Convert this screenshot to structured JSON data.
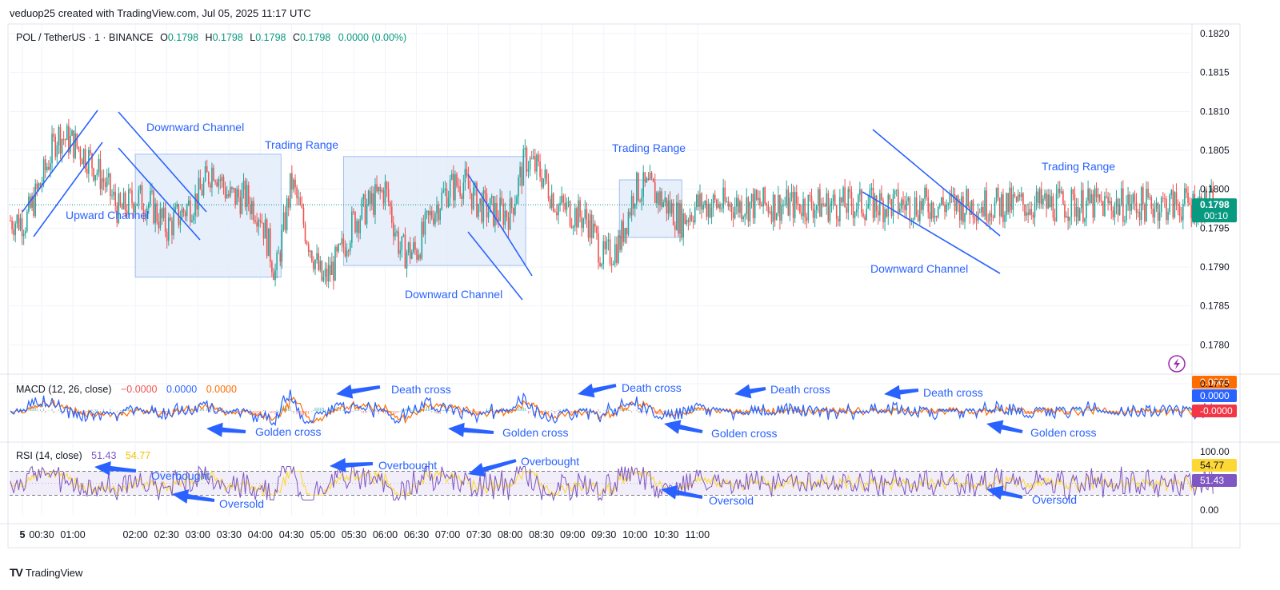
{
  "header": {
    "attribution": "veduop25 created with TradingView.com, Jul 05, 2025 11:17 UTC"
  },
  "footer": {
    "brand": "TradingView",
    "logo": "TV"
  },
  "colors": {
    "up": "#26a69a",
    "down": "#ef5350",
    "annotation": "#2962ff",
    "box_fill": "#e3edfb",
    "box_stroke": "#90b4f0",
    "macd": "#2962ff",
    "signal": "#ff6d00",
    "rsi": "#7e57c2",
    "rsi_ma": "#fdd835",
    "last_price": "#089981"
  },
  "legend": {
    "price": {
      "symbol": "POL / TetherUS · 1 · BINANCE",
      "o_label": "O",
      "o": "0.1798",
      "h_label": "H",
      "h": "0.1798",
      "l_label": "L",
      "l": "0.1798",
      "c_label": "C",
      "c": "0.1798",
      "change": "0.0000 (0.00%)"
    },
    "macd": {
      "label": "MACD (12, 26, close)",
      "hist": "−0.0000",
      "macd": "0.0000",
      "signal": "0.0000"
    },
    "rsi": {
      "label": "RSI (14, close)",
      "rsi": "51.43",
      "ma": "54.77"
    }
  },
  "price_axis": {
    "ticks": [
      "0.1820",
      "0.1815",
      "0.1810",
      "0.1805",
      "0.1800",
      "0.1795",
      "0.1790",
      "0.1785",
      "0.1780",
      "0.1775"
    ],
    "last_price": "0.1798",
    "countdown": "00:10"
  },
  "macd_axis": {
    "tags": [
      "0.0000",
      "0.0000",
      "-0.0000"
    ]
  },
  "rsi_axis": {
    "ticks": [
      "100.00",
      "0.00"
    ],
    "tags": [
      "54.77",
      "51.43"
    ]
  },
  "time_axis": {
    "labels": [
      "5",
      "00:30",
      "01:00",
      "02:00",
      "02:30",
      "03:00",
      "03:30",
      "04:00",
      "04:30",
      "05:00",
      "05:30",
      "06:00",
      "06:30",
      "07:00",
      "07:30",
      "08:00",
      "08:30",
      "09:00",
      "09:30",
      "10:00",
      "10:30",
      "11:00"
    ]
  },
  "annotations": {
    "price": [
      "Upward Channel",
      "Downward Channel",
      "Trading Range",
      "Downward Channel",
      "Trading Range",
      "Downward Channel",
      "Trading Range"
    ],
    "macd": [
      "Death cross",
      "Golden cross",
      "Golden cross",
      "Death cross",
      "Golden cross",
      "Death cross",
      "Death cross",
      "Golden cross"
    ],
    "rsi": [
      "Overbought",
      "Oversold",
      "Overbought",
      "Overbought",
      "Oversold",
      "Oversold"
    ]
  },
  "chart_data": {
    "type": "candlestick",
    "symbol": "POL / TetherUS",
    "exchange": "BINANCE",
    "interval": "1",
    "ylim": [
      0.1775,
      0.182
    ],
    "close_path": {
      "x": [
        "00:00",
        "00:15",
        "00:30",
        "00:45",
        "01:00",
        "01:15",
        "01:30",
        "01:45",
        "02:00",
        "02:15",
        "02:30",
        "02:45",
        "03:00",
        "03:15",
        "03:30",
        "03:45",
        "04:00",
        "04:15",
        "04:30",
        "04:45",
        "05:00",
        "05:15",
        "05:30",
        "05:45",
        "06:00",
        "06:15",
        "06:30",
        "06:45",
        "07:00",
        "07:15",
        "07:30",
        "07:45",
        "08:00",
        "08:15",
        "08:30",
        "08:45",
        "09:00",
        "09:15",
        "09:30",
        "09:45",
        "10:00",
        "10:15",
        "10:30",
        "10:45",
        "11:00",
        "11:15"
      ],
      "close": [
        0.1796,
        0.1796,
        0.1801,
        0.1807,
        0.1806,
        0.1804,
        0.1801,
        0.1797,
        0.1799,
        0.1798,
        0.1795,
        0.1797,
        0.1799,
        0.1803,
        0.1799,
        0.1799,
        0.1797,
        0.1789,
        0.1801,
        0.1794,
        0.1788,
        0.1791,
        0.1796,
        0.1798,
        0.18,
        0.1792,
        0.1792,
        0.1797,
        0.18,
        0.1801,
        0.1798,
        0.1797,
        0.1797,
        0.1804,
        0.1802,
        0.1798,
        0.1797,
        0.1796,
        0.1791,
        0.1793,
        0.18,
        0.18,
        0.1798,
        0.1796,
        0.1798,
        0.1798
      ]
    },
    "last": {
      "time": "11:16",
      "open": 0.1798,
      "high": 0.1798,
      "low": 0.1798,
      "close": 0.1798,
      "change": "0.0000 (0.00%)"
    },
    "indicators": {
      "macd": {
        "params": "12, 26, close",
        "histogram": -0.0,
        "macd": 0.0,
        "signal": 0.0
      },
      "rsi": {
        "params": "14, close",
        "rsi": 51.43,
        "rsi_ma": 54.77,
        "ylim": [
          0,
          100
        ]
      }
    }
  }
}
